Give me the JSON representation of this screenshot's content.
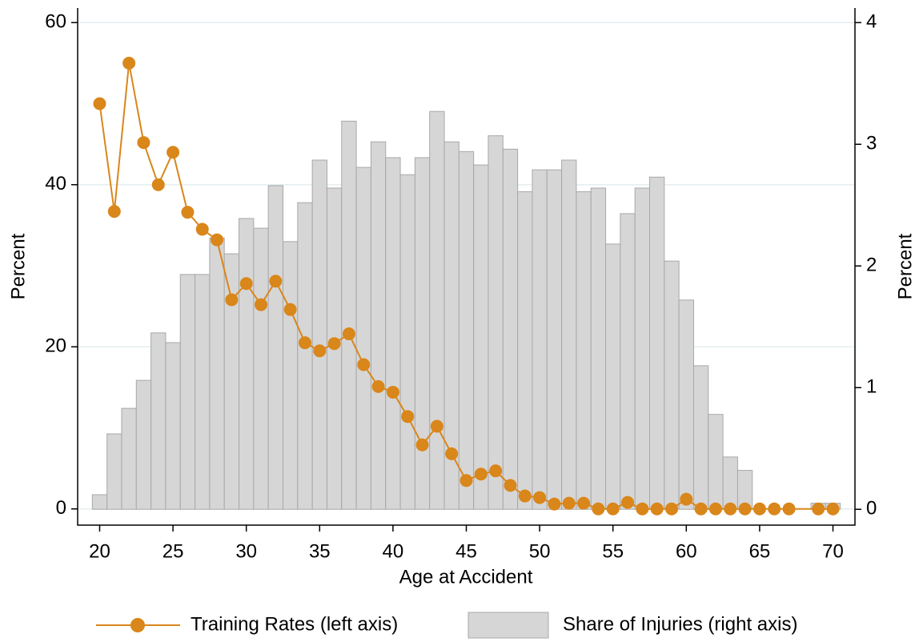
{
  "chart_data": {
    "type": "bar-line",
    "xlabel": "Age at Accident",
    "ylabel": "Percent",
    "y2label": "Percent",
    "xlim": [
      18.5,
      71.5
    ],
    "xticks": [
      20,
      25,
      30,
      35,
      40,
      45,
      50,
      55,
      60,
      65,
      70
    ],
    "ylim": [
      -2,
      61.8
    ],
    "yticks": [
      0,
      20,
      40,
      60
    ],
    "y2lim": [
      -0.13,
      4.12
    ],
    "y2ticks": [
      0,
      1,
      2,
      3,
      4
    ],
    "grid": true,
    "series": [
      {
        "name": "Training Rates (left axis)",
        "type": "line",
        "color": "#d9861a",
        "x": [
          20,
          21,
          22,
          23,
          24,
          25,
          26,
          27,
          28,
          29,
          30,
          31,
          32,
          33,
          34,
          35,
          36,
          37,
          38,
          39,
          40,
          41,
          42,
          43,
          44,
          45,
          46,
          47,
          48,
          49,
          50,
          51,
          52,
          53,
          54,
          55,
          56,
          57,
          58,
          59,
          60,
          61,
          62,
          63,
          64,
          65,
          66,
          67,
          69,
          70
        ],
        "values": [
          50,
          36.7,
          55,
          45.2,
          40,
          44,
          36.6,
          34.5,
          33.2,
          25.8,
          27.8,
          25.2,
          28.1,
          24.6,
          20.5,
          19.5,
          20.4,
          21.6,
          17.8,
          15.1,
          14.4,
          11.4,
          7.9,
          10.2,
          6.8,
          3.5,
          4.3,
          4.7,
          2.9,
          1.6,
          1.4,
          0.6,
          0.7,
          0.7,
          0,
          0,
          0.8,
          0,
          0,
          0,
          1.2,
          0,
          0,
          0,
          0,
          0,
          0,
          0,
          0,
          0
        ]
      },
      {
        "name": "Share of Injuries (right axis)",
        "type": "bar",
        "axis": "y2",
        "color": "#d6d6d6",
        "x": [
          20,
          21,
          22,
          23,
          24,
          25,
          26,
          27,
          28,
          29,
          30,
          31,
          32,
          33,
          34,
          35,
          36,
          37,
          38,
          39,
          40,
          41,
          42,
          43,
          44,
          45,
          46,
          47,
          48,
          49,
          50,
          51,
          52,
          53,
          54,
          55,
          56,
          57,
          58,
          59,
          60,
          61,
          62,
          63,
          64,
          65,
          66,
          67,
          68,
          69,
          70
        ],
        "values": [
          0.12,
          0.62,
          0.83,
          1.06,
          1.45,
          1.37,
          1.93,
          1.93,
          2.23,
          2.1,
          2.39,
          2.31,
          2.66,
          2.2,
          2.52,
          2.87,
          2.64,
          3.19,
          2.81,
          3.02,
          2.89,
          2.75,
          2.89,
          3.27,
          3.02,
          2.94,
          2.83,
          3.07,
          2.96,
          2.61,
          2.79,
          2.79,
          2.87,
          2.61,
          2.64,
          2.18,
          2.43,
          2.64,
          2.73,
          2.04,
          1.72,
          1.18,
          0.78,
          0.43,
          0.32,
          0,
          0,
          0,
          0,
          0.05,
          0.05
        ]
      }
    ]
  }
}
